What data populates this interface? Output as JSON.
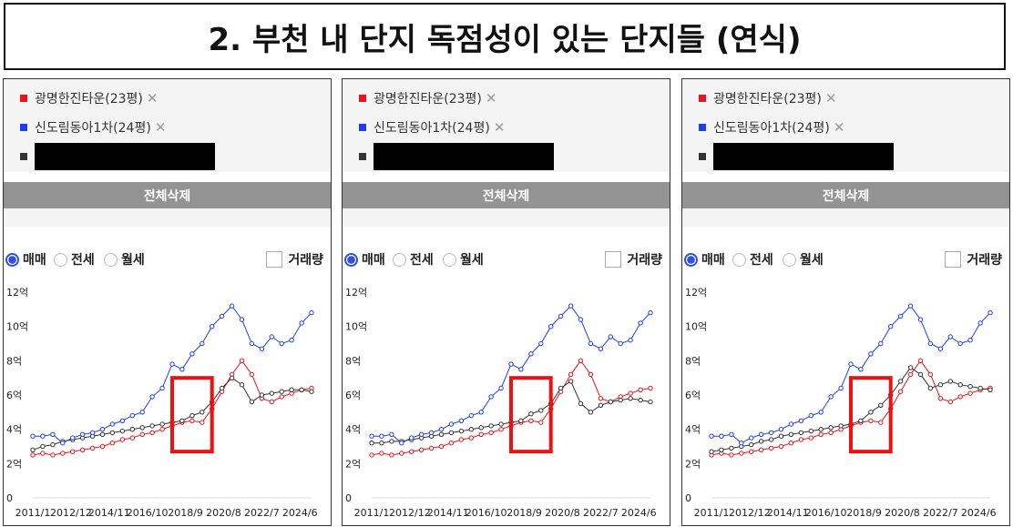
{
  "page_title": "2. 부천 내 단지 독점성이 있는 단지들 (연식)",
  "legend": [
    {
      "label": "광명한진타운(23평)",
      "color": "#e8141b"
    },
    {
      "label": "신도림동아1차(24평)",
      "color": "#1c3ef0"
    },
    {
      "label": "",
      "color": "#333333"
    }
  ],
  "close_glyph": "✕",
  "delete_all_label": "전체삭제",
  "radio_labels": [
    "매매",
    "전세",
    "월세"
  ],
  "volume_label": "거래량",
  "colors": {
    "red": "#e8141b",
    "blue": "#1c3ef0",
    "black": "#333333",
    "highlight": "#ee1111"
  },
  "chart_data": [
    {
      "type": "line",
      "x": [
        "2011/1",
        "2011/7",
        "2012/1",
        "2012/7",
        "2013/1",
        "2013/7",
        "2014/1",
        "2014/7",
        "2015/1",
        "2015/7",
        "2016/1",
        "2016/7",
        "2017/1",
        "2017/7",
        "2018/1",
        "2018/7",
        "2019/1",
        "2019/7",
        "2020/1",
        "2020/7",
        "2021/1",
        "2021/7",
        "2022/1",
        "2022/7",
        "2023/1",
        "2023/7",
        "2024/1",
        "2024/7",
        "2025/1"
      ],
      "x_ticks": [
        "2011/1",
        "2012/12",
        "2014/11",
        "2016/10",
        "2018/9",
        "2020/8",
        "2022/7",
        "2024/6"
      ],
      "y_ticks": [
        "0",
        "2억",
        "4억",
        "6억",
        "8억",
        "10억",
        "12억"
      ],
      "ylim": [
        0,
        12
      ],
      "series": [
        {
          "name": "광명한진타운(23평)",
          "values": [
            2.5,
            2.6,
            2.5,
            2.6,
            2.7,
            2.8,
            2.9,
            3.0,
            3.2,
            3.4,
            3.5,
            3.7,
            3.8,
            4.0,
            4.2,
            4.4,
            4.5,
            4.4,
            5.2,
            6.2,
            7.2,
            8.0,
            7.2,
            5.8,
            5.6,
            5.9,
            6.1,
            6.3,
            6.4
          ]
        },
        {
          "name": "신도림동아1차(24평)",
          "values": [
            3.6,
            3.6,
            3.7,
            3.2,
            3.5,
            3.7,
            3.8,
            4.0,
            4.3,
            4.5,
            4.8,
            5.0,
            5.9,
            6.4,
            7.8,
            7.5,
            8.4,
            9.0,
            10.0,
            10.6,
            11.2,
            10.4,
            9.0,
            8.7,
            9.4,
            9.0,
            9.2,
            10.2,
            10.8
          ]
        },
        {
          "name": "",
          "values": [
            2.8,
            3.0,
            3.1,
            3.3,
            3.4,
            3.5,
            3.6,
            3.7,
            3.8,
            3.9,
            4.0,
            4.1,
            4.2,
            4.3,
            4.4,
            4.5,
            4.8,
            5.0,
            5.6,
            6.4,
            7.0,
            6.6,
            5.6,
            6.0,
            6.1,
            6.2,
            6.3,
            6.3,
            6.2
          ]
        }
      ],
      "highlight": {
        "x_from": "2018/1",
        "x_to": "2020/1",
        "y_from": 2.7,
        "y_to": 7.0
      }
    },
    {
      "type": "line",
      "x": [
        "2011/1",
        "2011/7",
        "2012/1",
        "2012/7",
        "2013/1",
        "2013/7",
        "2014/1",
        "2014/7",
        "2015/1",
        "2015/7",
        "2016/1",
        "2016/7",
        "2017/1",
        "2017/7",
        "2018/1",
        "2018/7",
        "2019/1",
        "2019/7",
        "2020/1",
        "2020/7",
        "2021/1",
        "2021/7",
        "2022/1",
        "2022/7",
        "2023/1",
        "2023/7",
        "2024/1",
        "2024/7",
        "2025/1"
      ],
      "x_ticks": [
        "2011/1",
        "2012/12",
        "2014/11",
        "2016/10",
        "2018/9",
        "2020/8",
        "2022/7",
        "2024/6"
      ],
      "y_ticks": [
        "0",
        "2억",
        "4억",
        "6억",
        "8억",
        "10억",
        "12억"
      ],
      "ylim": [
        0,
        12
      ],
      "series": [
        {
          "name": "광명한진타운(23평)",
          "values": [
            2.5,
            2.6,
            2.5,
            2.6,
            2.7,
            2.8,
            2.9,
            3.0,
            3.2,
            3.4,
            3.5,
            3.7,
            3.8,
            4.0,
            4.2,
            4.4,
            4.5,
            4.4,
            5.2,
            6.2,
            7.2,
            8.0,
            7.2,
            5.8,
            5.6,
            5.9,
            6.1,
            6.3,
            6.4
          ]
        },
        {
          "name": "신도림동아1차(24평)",
          "values": [
            3.6,
            3.6,
            3.7,
            3.2,
            3.5,
            3.7,
            3.8,
            4.0,
            4.3,
            4.5,
            4.8,
            5.0,
            5.9,
            6.4,
            7.8,
            7.5,
            8.4,
            9.0,
            10.0,
            10.6,
            11.2,
            10.4,
            9.0,
            8.7,
            9.4,
            9.0,
            9.2,
            10.2,
            10.8
          ]
        },
        {
          "name": "",
          "values": [
            3.2,
            3.2,
            3.3,
            3.3,
            3.4,
            3.5,
            3.6,
            3.7,
            3.8,
            3.9,
            4.0,
            4.1,
            4.2,
            4.3,
            4.4,
            4.5,
            4.9,
            5.1,
            5.5,
            6.4,
            6.8,
            5.5,
            5.0,
            5.4,
            5.6,
            5.7,
            5.8,
            5.7,
            5.6
          ]
        }
      ],
      "highlight": {
        "x_from": "2018/1",
        "x_to": "2020/1",
        "y_from": 2.7,
        "y_to": 7.0
      }
    },
    {
      "type": "line",
      "x": [
        "2011/1",
        "2011/7",
        "2012/1",
        "2012/7",
        "2013/1",
        "2013/7",
        "2014/1",
        "2014/7",
        "2015/1",
        "2015/7",
        "2016/1",
        "2016/7",
        "2017/1",
        "2017/7",
        "2018/1",
        "2018/7",
        "2019/1",
        "2019/7",
        "2020/1",
        "2020/7",
        "2021/1",
        "2021/7",
        "2022/1",
        "2022/7",
        "2023/1",
        "2023/7",
        "2024/1",
        "2024/7",
        "2025/1"
      ],
      "x_ticks": [
        "2011/1",
        "2012/12",
        "2014/11",
        "2016/10",
        "2018/9",
        "2020/8",
        "2022/7",
        "2024/6"
      ],
      "y_ticks": [
        "0",
        "2억",
        "4억",
        "6억",
        "8억",
        "10억",
        "12억"
      ],
      "ylim": [
        0,
        12
      ],
      "series": [
        {
          "name": "광명한진타운(23평)",
          "values": [
            2.5,
            2.6,
            2.5,
            2.6,
            2.7,
            2.8,
            2.9,
            3.0,
            3.2,
            3.4,
            3.5,
            3.7,
            3.8,
            4.0,
            4.2,
            4.4,
            4.5,
            4.4,
            5.2,
            6.2,
            7.2,
            8.0,
            7.2,
            5.8,
            5.6,
            5.9,
            6.1,
            6.3,
            6.4
          ]
        },
        {
          "name": "신도림동아1차(24평)",
          "values": [
            3.6,
            3.6,
            3.7,
            3.2,
            3.5,
            3.7,
            3.8,
            4.0,
            4.3,
            4.5,
            4.8,
            5.0,
            5.9,
            6.4,
            7.8,
            7.5,
            8.4,
            9.0,
            10.0,
            10.6,
            11.2,
            10.4,
            9.0,
            8.7,
            9.4,
            9.0,
            9.2,
            10.2,
            10.8
          ]
        },
        {
          "name": "",
          "values": [
            2.7,
            2.8,
            2.9,
            3.0,
            3.1,
            3.3,
            3.4,
            3.6,
            3.7,
            3.8,
            3.9,
            4.0,
            4.1,
            4.2,
            4.3,
            4.5,
            5.0,
            5.4,
            6.0,
            6.8,
            7.6,
            7.2,
            6.4,
            6.6,
            6.8,
            6.6,
            6.5,
            6.4,
            6.3
          ]
        }
      ],
      "highlight": {
        "x_from": "2018/1",
        "x_to": "2020/1",
        "y_from": 2.7,
        "y_to": 7.0
      }
    }
  ]
}
